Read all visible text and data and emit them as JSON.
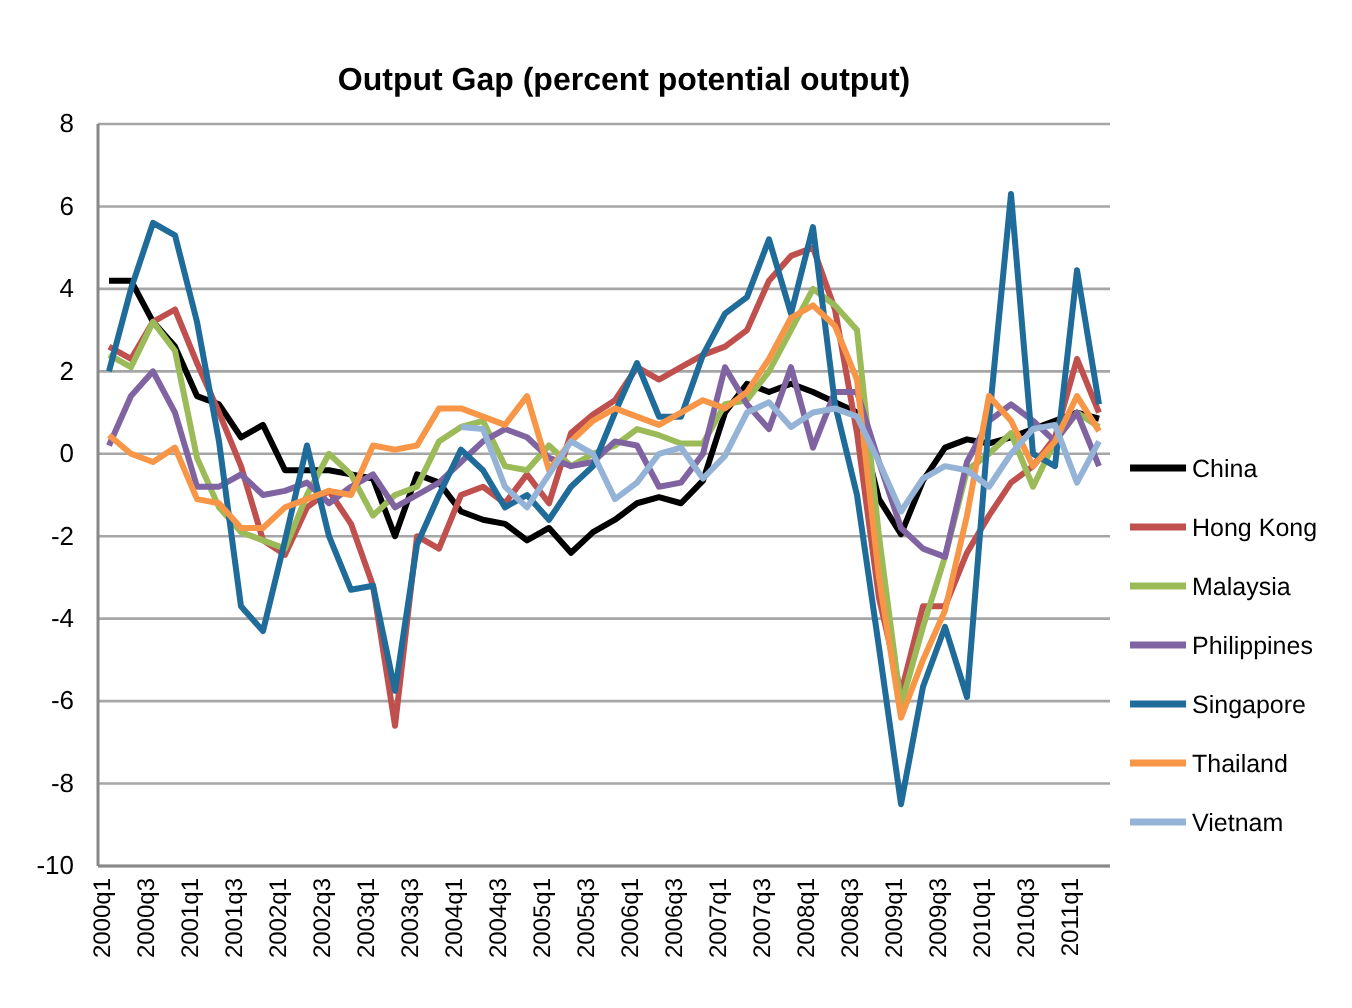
{
  "chart_data": {
    "type": "line",
    "title": "Output Gap (percent potential output)",
    "categories": [
      "2000q1",
      null,
      "2000q3",
      null,
      "2001q1",
      null,
      "2001q3",
      null,
      "2002q1",
      null,
      "2002q3",
      null,
      "2003q1",
      null,
      "2003q3",
      null,
      "2004q1",
      null,
      "2004q3",
      null,
      "2005q1",
      null,
      "2005q3",
      null,
      "2006q1",
      null,
      "2006q3",
      null,
      "2007q1",
      null,
      "2007q3",
      null,
      "2008q1",
      null,
      "2008q3",
      null,
      "2009q1",
      null,
      "2009q3",
      null,
      "2010q1",
      null,
      "2010q3",
      null,
      "2011q1",
      null
    ],
    "ylim": [
      -10,
      8
    ],
    "yticks": [
      -10,
      -8,
      -6,
      -4,
      -2,
      0,
      2,
      4,
      6,
      8
    ],
    "grid": "y",
    "legend": "right",
    "marker": "none",
    "line_style": "solid",
    "series": [
      {
        "name": "China",
        "color": "#000000",
        "values": [
          4.2,
          4.2,
          3.2,
          2.6,
          1.4,
          1.2,
          0.4,
          0.7,
          -0.4,
          -0.4,
          -0.4,
          -0.5,
          -0.6,
          -2.0,
          -0.5,
          -0.7,
          -1.4,
          -1.6,
          -1.7,
          -2.1,
          -1.8,
          -2.4,
          -1.9,
          -1.6,
          -1.2,
          -1.05,
          -1.2,
          -0.65,
          1.0,
          1.7,
          1.5,
          1.7,
          1.5,
          1.25,
          1.0,
          -1.1,
          -1.95,
          -0.65,
          0.15,
          0.35,
          0.25,
          0.4,
          0.6,
          0.8,
          1.0,
          0.85
        ]
      },
      {
        "name": "Hong Kong",
        "color": "#c0504d",
        "values": [
          2.6,
          2.3,
          3.2,
          3.5,
          2.2,
          1.0,
          -0.3,
          -2.1,
          -2.45,
          -1.3,
          -0.9,
          -1.7,
          -3.2,
          -6.6,
          -2.0,
          -2.3,
          -1.0,
          -0.8,
          -1.2,
          -0.5,
          -1.2,
          0.5,
          0.95,
          1.3,
          2.1,
          1.8,
          2.1,
          2.4,
          2.6,
          3.0,
          4.2,
          4.8,
          5.0,
          3.5,
          0.5,
          -3.5,
          -5.8,
          -3.7,
          -3.7,
          -2.4,
          -1.5,
          -0.7,
          -0.3,
          0.4,
          2.3,
          1.0
        ]
      },
      {
        "name": "Malaysia",
        "color": "#9bbb59",
        "values": [
          2.4,
          2.1,
          3.2,
          2.5,
          -0.1,
          -1.3,
          -1.9,
          -2.1,
          -2.3,
          -1.0,
          0.0,
          -0.5,
          -1.5,
          -1.0,
          -0.8,
          0.3,
          0.65,
          0.8,
          -0.3,
          -0.4,
          0.2,
          -0.3,
          0.0,
          0.2,
          0.6,
          0.45,
          0.25,
          0.25,
          1.2,
          1.3,
          2.0,
          3.0,
          4.0,
          3.6,
          3.0,
          -2.0,
          -6.1,
          -4.2,
          -2.5,
          -0.4,
          0.0,
          0.5,
          -0.8,
          0.3,
          1.0,
          0.65
        ]
      },
      {
        "name": "Philippines",
        "color": "#8064a2",
        "values": [
          0.2,
          1.4,
          2.0,
          1.0,
          -0.8,
          -0.8,
          -0.5,
          -1.0,
          -0.9,
          -0.7,
          -1.2,
          -0.8,
          -0.5,
          -1.3,
          -1.0,
          -0.7,
          -0.2,
          0.3,
          0.6,
          0.4,
          -0.1,
          -0.3,
          -0.2,
          0.3,
          0.2,
          -0.8,
          -0.7,
          0.0,
          2.1,
          1.2,
          0.6,
          2.1,
          0.15,
          1.5,
          1.5,
          -0.2,
          -1.8,
          -2.3,
          -2.5,
          -0.2,
          0.8,
          1.2,
          0.8,
          0.3,
          1.0,
          -0.3
        ]
      },
      {
        "name": "Singapore",
        "color": "#1f6b9a",
        "values": [
          2.0,
          4.0,
          5.6,
          5.3,
          3.2,
          0.3,
          -3.7,
          -4.3,
          -2.1,
          0.2,
          -2.0,
          -3.3,
          -3.2,
          -5.75,
          -2.2,
          -1.0,
          0.1,
          -0.4,
          -1.3,
          -1.0,
          -1.6,
          -0.8,
          -0.3,
          1.0,
          2.2,
          0.9,
          0.9,
          2.4,
          3.4,
          3.8,
          5.2,
          3.4,
          5.5,
          1.2,
          -1.0,
          -4.7,
          -8.5,
          -5.65,
          -4.2,
          -5.9,
          0.8,
          6.3,
          0.0,
          -0.3,
          4.45,
          1.2
        ]
      },
      {
        "name": "Thailand",
        "color": "#f79646",
        "values": [
          0.45,
          0.0,
          -0.2,
          0.15,
          -1.1,
          -1.2,
          -1.8,
          -1.8,
          -1.3,
          -1.1,
          -0.9,
          -1.0,
          0.2,
          0.1,
          0.2,
          1.1,
          1.1,
          0.9,
          0.7,
          1.4,
          -0.4,
          0.3,
          0.8,
          1.1,
          0.9,
          0.7,
          1.0,
          1.3,
          1.1,
          1.5,
          2.3,
          3.3,
          3.6,
          3.1,
          1.8,
          -3.0,
          -6.4,
          -5.0,
          -3.8,
          -1.5,
          1.4,
          0.8,
          -0.3,
          0.3,
          1.4,
          0.55
        ]
      },
      {
        "name": "Vietnam",
        "color": "#95b3d7",
        "values": [
          null,
          null,
          null,
          null,
          null,
          null,
          null,
          null,
          null,
          null,
          null,
          null,
          null,
          null,
          null,
          null,
          0.65,
          0.6,
          -0.8,
          -1.3,
          -0.5,
          0.3,
          0.0,
          -1.1,
          -0.7,
          0.0,
          0.15,
          -0.6,
          -0.05,
          1.0,
          1.25,
          0.65,
          1.0,
          1.1,
          0.9,
          -0.2,
          -1.4,
          -0.6,
          -0.3,
          -0.4,
          -0.8,
          0.0,
          0.6,
          0.7,
          -0.7,
          0.3
        ]
      }
    ]
  }
}
